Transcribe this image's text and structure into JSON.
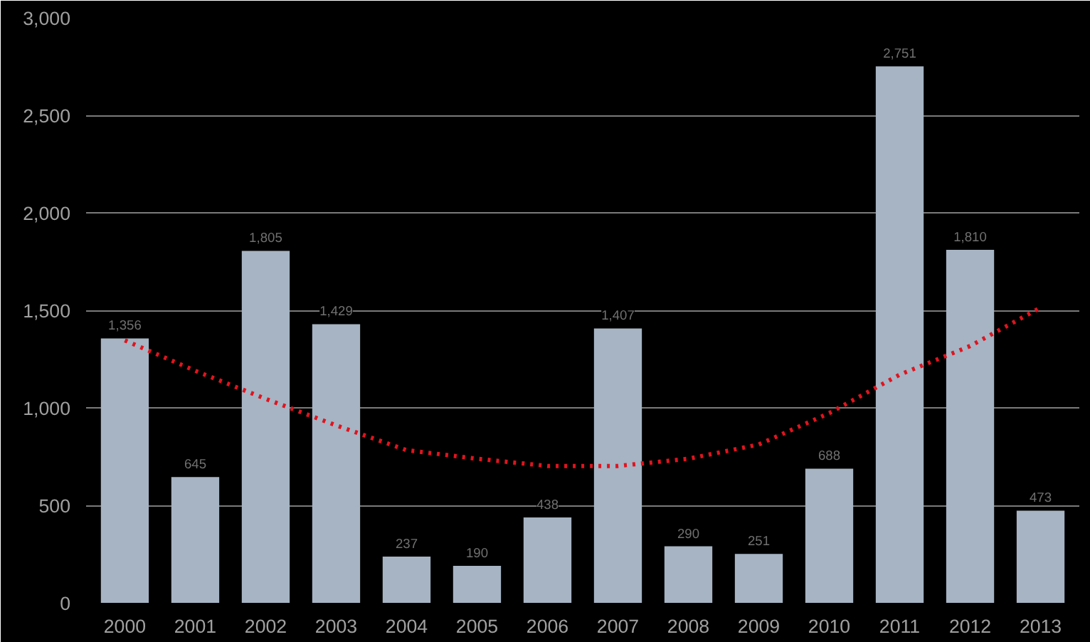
{
  "chart_data": {
    "type": "bar",
    "categories": [
      "2000",
      "2001",
      "2002",
      "2003",
      "2004",
      "2005",
      "2006",
      "2007",
      "2008",
      "2009",
      "2010",
      "2011",
      "2012",
      "2013"
    ],
    "series": [
      {
        "color": "#a6b4c4",
        "values": [
          1356,
          645,
          1805,
          1429,
          237,
          190,
          438,
          1407,
          290,
          251,
          688,
          2751,
          1810,
          473
        ],
        "value_labels": [
          "1,356",
          "645",
          "1,805",
          "1,429",
          "237",
          "190",
          "438",
          "1,407",
          "290",
          "251",
          "688",
          "2,751",
          "1,810",
          "473"
        ]
      },
      {
        "type": "line",
        "color": "#e0141e",
        "line_style": "dotted",
        "values": [
          1346,
          1190,
          1046,
          910,
          783,
          739,
          702,
          702,
          739,
          812,
          973,
          1170,
          1317,
          1514
        ]
      }
    ],
    "ylim": [
      0,
      3000
    ],
    "yticks": [
      {
        "value": 0,
        "label": "0"
      },
      {
        "value": 500,
        "label": "500"
      },
      {
        "value": 1000,
        "label": "1,000"
      },
      {
        "value": 1500,
        "label": "1,500"
      },
      {
        "value": 2000,
        "label": "2,000"
      },
      {
        "value": 2500,
        "label": "2,500"
      },
      {
        "value": 3000,
        "label": "3,000"
      }
    ],
    "grid": "y"
  }
}
